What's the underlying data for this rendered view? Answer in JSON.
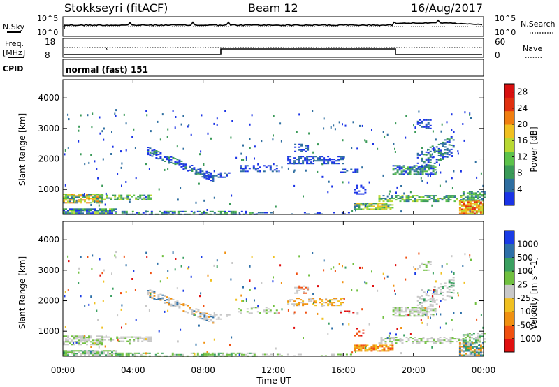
{
  "header": {
    "station": "Stokkseyri (fitACF)",
    "beam": "Beam 12",
    "date": "16/Aug/2017"
  },
  "noise_panel": {
    "left_label": "N.Sky",
    "right_label": "N.Search",
    "left_ticks": [
      "10^5",
      "10^0"
    ],
    "right_ticks": [
      "10^5",
      "10^0"
    ]
  },
  "freq_panel": {
    "left_label": "Freq.",
    "left_unit": "[MHz]",
    "left_ticks": [
      "18",
      "8"
    ],
    "right_label": "Nave",
    "right_ticks": [
      "60",
      "0"
    ]
  },
  "cpid_panel": {
    "label": "CPID",
    "value": "normal (fast) 151"
  },
  "colors": {
    "power": [
      "#1a33e6",
      "#2e6ea0",
      "#3a9a58",
      "#5cc24a",
      "#b8d832",
      "#f0c020",
      "#f07e10",
      "#e03010",
      "#d81010"
    ],
    "velocity": [
      "#e01010",
      "#f05010",
      "#f09010",
      "#f0c020",
      "#c8c8c8",
      "#70c040",
      "#3aa060",
      "#2e70a8",
      "#1a3ce6"
    ]
  },
  "chart_data": [
    {
      "type": "heatmap",
      "title": "Power",
      "ylabel": "Slant Range [km]",
      "ylim": [
        180,
        4600
      ],
      "y_ticks": [
        "1000",
        "2000",
        "3000",
        "4000"
      ],
      "xlim": [
        "00:00",
        "24:00"
      ],
      "x_ticks": [
        "00:00",
        "04:00",
        "08:00",
        "12:00",
        "16:00",
        "20:00",
        "00:00"
      ],
      "colorbar": {
        "label": "Power [dB]",
        "ticks": [
          "4",
          "8",
          "12",
          "16",
          "20",
          "24",
          "28"
        ],
        "range": [
          0,
          30
        ]
      }
    },
    {
      "type": "heatmap",
      "title": "Velocity",
      "ylabel": "Slant Range [km]",
      "ylim": [
        180,
        4600
      ],
      "y_ticks": [
        "1000",
        "2000",
        "3000",
        "4000"
      ],
      "xlim": [
        "00:00",
        "24:00"
      ],
      "x_ticks": [
        "00:00",
        "04:00",
        "08:00",
        "12:00",
        "16:00",
        "20:00",
        "00:00"
      ],
      "xlabel": "Time UT",
      "colorbar": {
        "label": "Velocity [m s^-1]",
        "ticks": [
          "1000",
          "500",
          "100",
          "25",
          "-25",
          "-100",
          "-500",
          "-1000"
        ]
      }
    }
  ],
  "series": {
    "frequency_step": {
      "values": [
        0,
        9,
        19,
        24
      ],
      "levels": [
        "low",
        "high",
        "low",
        "low"
      ]
    }
  }
}
